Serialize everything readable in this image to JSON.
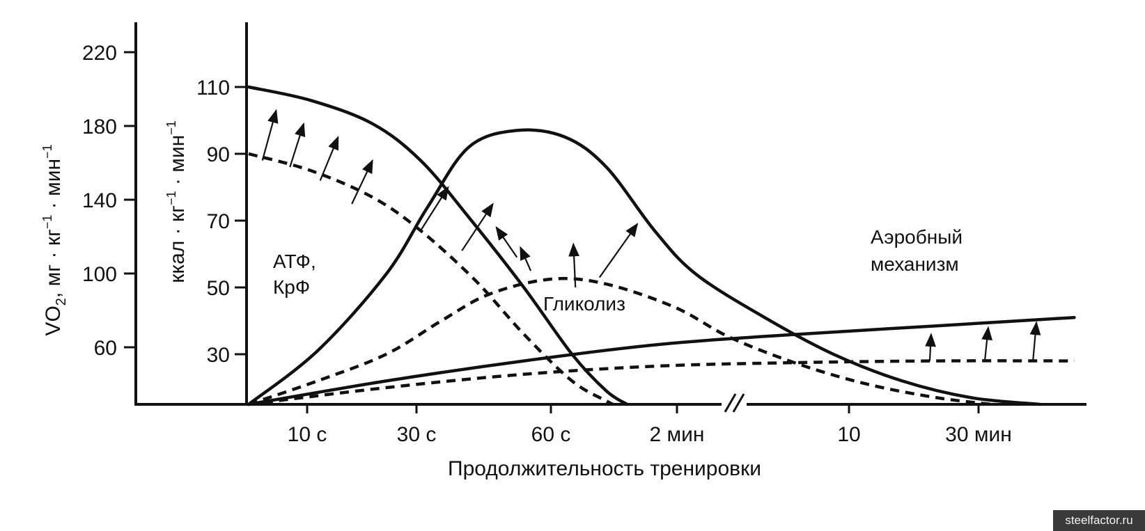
{
  "chart_data": {
    "type": "line",
    "xlabel": "Продолжительность тренировки",
    "x_ticks": [
      "10 с",
      "30 с",
      "60 с",
      "2 мин",
      "10",
      "30 мин"
    ],
    "axis_break_between": [
      "2 мин",
      "10"
    ],
    "y_outer": {
      "label_main": "VO",
      "label_sub": "2",
      "label_rest": ", мг · кг",
      "label_sup1": "−1",
      "label_rest2": " · мин",
      "label_sup2": "−1",
      "ticks": [
        60,
        100,
        140,
        180,
        220
      ]
    },
    "y_inner": {
      "label_main": "ккал · кг",
      "label_sup1": "−1",
      "label_rest": " · мин",
      "label_sup2": "−1",
      "ticks": [
        30,
        50,
        70,
        90,
        110
      ],
      "ylim": [
        15,
        110
      ]
    },
    "annotations": [
      {
        "id": "atp",
        "lines": [
          "АТФ,",
          "КрФ"
        ]
      },
      {
        "id": "glyc",
        "lines": [
          "Гликолиз"
        ]
      },
      {
        "id": "aer",
        "lines": [
          "Аэробный",
          "механизм"
        ]
      }
    ],
    "series": [
      {
        "style": "solid",
        "points": [
          [
            0,
            110
          ],
          [
            0.9,
            106
          ],
          [
            1.8,
            99
          ],
          [
            2.5,
            88
          ],
          [
            3.2,
            71
          ],
          [
            4,
            50
          ],
          [
            4.7,
            30
          ],
          [
            5.2,
            19
          ],
          [
            5.5,
            15
          ]
        ]
      },
      {
        "style": "dashed",
        "points": [
          [
            0,
            90
          ],
          [
            0.9,
            85
          ],
          [
            1.8,
            77
          ],
          [
            2.5,
            67
          ],
          [
            3.3,
            52
          ],
          [
            4,
            36
          ],
          [
            4.7,
            22
          ],
          [
            5.2,
            16
          ],
          [
            5.3,
            15
          ]
        ]
      },
      {
        "style": "solid",
        "points": [
          [
            0,
            15
          ],
          [
            1,
            31
          ],
          [
            2,
            54
          ],
          [
            2.6,
            74
          ],
          [
            3.2,
            92
          ],
          [
            3.9,
            97
          ],
          [
            4.6,
            95
          ],
          [
            5.2,
            86
          ],
          [
            5.9,
            67
          ],
          [
            6.5,
            54
          ],
          [
            7.5,
            41
          ],
          [
            8.5,
            30
          ],
          [
            9.5,
            22
          ],
          [
            10.5,
            17
          ],
          [
            11.5,
            15
          ]
        ]
      },
      {
        "style": "dashed",
        "points": [
          [
            0,
            15
          ],
          [
            1,
            22
          ],
          [
            2,
            30
          ],
          [
            2.8,
            40
          ],
          [
            3.5,
            48
          ],
          [
            4.4,
            52.5
          ],
          [
            5.2,
            51
          ],
          [
            6.2,
            44
          ],
          [
            7,
            35
          ],
          [
            8,
            27
          ],
          [
            9,
            21
          ],
          [
            10,
            17
          ],
          [
            10.8,
            15
          ]
        ]
      },
      {
        "style": "solid",
        "points": [
          [
            0,
            15
          ],
          [
            2,
            22
          ],
          [
            4,
            28
          ],
          [
            6,
            33
          ],
          [
            8,
            36
          ],
          [
            10,
            38.5
          ],
          [
            12,
            41
          ]
        ]
      },
      {
        "style": "dashed",
        "points": [
          [
            0,
            15
          ],
          [
            2,
            20
          ],
          [
            4,
            24
          ],
          [
            6,
            26.5
          ],
          [
            8,
            27.5
          ],
          [
            10,
            28
          ],
          [
            12,
            28
          ]
        ]
      }
    ],
    "arrows": [
      {
        "from": [
          0.2,
          88
        ],
        "to": [
          0.4,
          103
        ]
      },
      {
        "from": [
          0.6,
          86
        ],
        "to": [
          0.8,
          99
        ]
      },
      {
        "from": [
          1.04,
          82
        ],
        "to": [
          1.3,
          95
        ]
      },
      {
        "from": [
          1.5,
          75
        ],
        "to": [
          1.8,
          88
        ]
      },
      {
        "from": [
          2.5,
          67
        ],
        "to": [
          2.9,
          80
        ]
      },
      {
        "from": [
          3.1,
          61
        ],
        "to": [
          3.55,
          75
        ]
      },
      {
        "from": [
          3.9,
          59
        ],
        "to": [
          3.6,
          68
        ]
      },
      {
        "from": [
          4.1,
          55
        ],
        "to": [
          3.95,
          62
        ]
      },
      {
        "from": [
          4.75,
          50
        ],
        "to": [
          4.72,
          63
        ]
      },
      {
        "from": [
          5.1,
          53
        ],
        "to": [
          5.65,
          69
        ]
      },
      {
        "from": [
          9.9,
          28
        ],
        "to": [
          9.92,
          36
        ]
      },
      {
        "from": [
          10.7,
          28
        ],
        "to": [
          10.75,
          38
        ]
      },
      {
        "from": [
          11.4,
          28
        ],
        "to": [
          11.45,
          39.5
        ]
      }
    ]
  },
  "watermark": "steelfactor.ru"
}
